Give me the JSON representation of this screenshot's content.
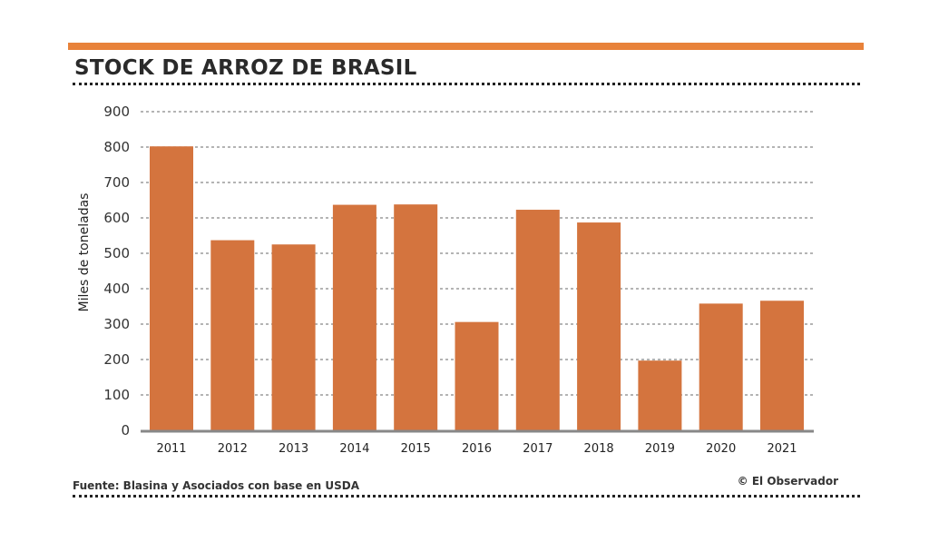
{
  "header": {
    "title": "STOCK DE ARROZ DE BRASIL",
    "accent_color": "#e8823a"
  },
  "footer": {
    "source": "Fuente: Blasina y Asociados con base en USDA",
    "credit": "© El Observador"
  },
  "chart_data": {
    "type": "bar",
    "title": "STOCK DE ARROZ DE BRASIL",
    "xlabel": "",
    "ylabel": "Miles de toneladas",
    "categories": [
      "2011",
      "2012",
      "2013",
      "2014",
      "2015",
      "2016",
      "2017",
      "2018",
      "2019",
      "2020",
      "2021"
    ],
    "values": [
      802,
      537,
      525,
      637,
      638,
      306,
      623,
      587,
      197,
      358,
      366
    ],
    "ylim": [
      0,
      900
    ],
    "yticks": [
      0,
      100,
      200,
      300,
      400,
      500,
      600,
      700,
      800,
      900
    ],
    "grid": true,
    "bar_color": "#d4743e"
  }
}
